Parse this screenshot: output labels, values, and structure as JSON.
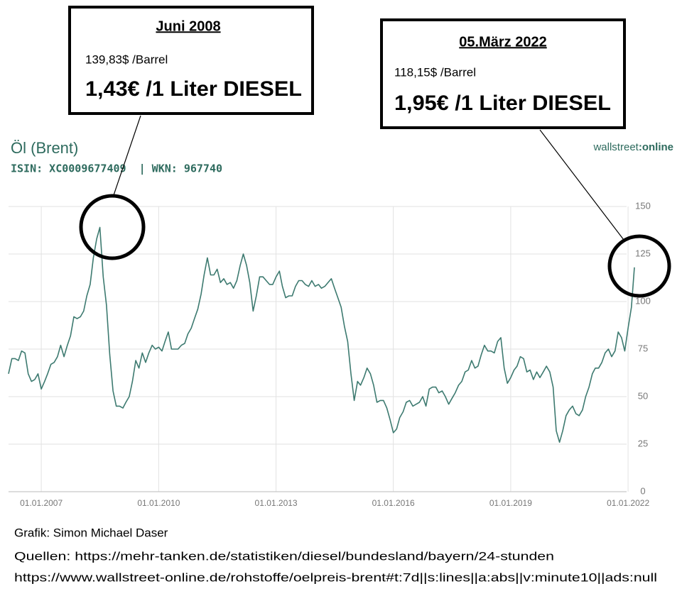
{
  "chart_data": {
    "type": "line",
    "title": "Öl (Brent)",
    "subtitle": "ISIN: XC0009677409  | WKN: 967740",
    "brand": [
      "wallstreet",
      ":online"
    ],
    "annotations": [
      {
        "heading": "Juni 2008",
        "price": "139,83$ /Barrel",
        "diesel": "1,43€ /1 Liter DIESEL"
      },
      {
        "heading": "05.März 2022",
        "price": "118,15$ /Barrel",
        "diesel": "1,95€ /1 Liter DIESEL"
      }
    ],
    "credit": "Grafik: Simon Michael Daser",
    "sources": [
      "Quellen: https://mehr-tanken.de/statistiken/diesel/bundesland/bayern/24-stunden",
      "https://www.wallstreet-online.de/rohstoffe/oelpreis-brent#t:7d||s:lines||a:abs||v:minute10||ads:null"
    ],
    "color": "#3d7a70",
    "grid": true,
    "xlim": [
      "2006-03-01",
      "2022-03-01"
    ],
    "xticks": [
      {
        "value": "2007-01-01",
        "label": "01.01.2007"
      },
      {
        "value": "2010-01-01",
        "label": "01.01.2010"
      },
      {
        "value": "2013-01-01",
        "label": "01.01.2013"
      },
      {
        "value": "2016-01-01",
        "label": "01.01.2016"
      },
      {
        "value": "2019-01-01",
        "label": "01.01.2019"
      },
      {
        "value": "2022-01-01",
        "label": "01.01.2022"
      }
    ],
    "ylim": [
      0,
      150
    ],
    "yticks": [
      0,
      25,
      50,
      75,
      100,
      125,
      150
    ],
    "series": [
      {
        "name": "Öl (Brent)",
        "color": "#3d7a70",
        "x": [
          "2006-03-01",
          "2006-04-01",
          "2006-05-01",
          "2006-06-01",
          "2006-07-01",
          "2006-08-01",
          "2006-09-01",
          "2006-10-01",
          "2006-11-01",
          "2006-12-01",
          "2007-01-01",
          "2007-02-01",
          "2007-03-01",
          "2007-04-01",
          "2007-05-01",
          "2007-06-01",
          "2007-07-01",
          "2007-08-01",
          "2007-09-01",
          "2007-10-01",
          "2007-11-01",
          "2007-12-01",
          "2008-01-01",
          "2008-02-01",
          "2008-03-01",
          "2008-04-01",
          "2008-05-01",
          "2008-06-01",
          "2008-07-01",
          "2008-08-01",
          "2008-09-01",
          "2008-10-01",
          "2008-11-01",
          "2008-12-01",
          "2009-01-01",
          "2009-02-01",
          "2009-03-01",
          "2009-04-01",
          "2009-05-01",
          "2009-06-01",
          "2009-07-01",
          "2009-08-01",
          "2009-09-01",
          "2009-10-01",
          "2009-11-01",
          "2009-12-01",
          "2010-01-01",
          "2010-02-01",
          "2010-03-01",
          "2010-04-01",
          "2010-05-01",
          "2010-06-01",
          "2010-07-01",
          "2010-08-01",
          "2010-09-01",
          "2010-10-01",
          "2010-11-01",
          "2010-12-01",
          "2011-01-01",
          "2011-02-01",
          "2011-03-01",
          "2011-04-01",
          "2011-05-01",
          "2011-06-01",
          "2011-07-01",
          "2011-08-01",
          "2011-09-01",
          "2011-10-01",
          "2011-11-01",
          "2011-12-01",
          "2012-01-01",
          "2012-02-01",
          "2012-03-01",
          "2012-04-01",
          "2012-05-01",
          "2012-06-01",
          "2012-07-01",
          "2012-08-01",
          "2012-09-01",
          "2012-10-01",
          "2012-11-01",
          "2012-12-01",
          "2013-01-01",
          "2013-02-01",
          "2013-03-01",
          "2013-04-01",
          "2013-05-01",
          "2013-06-01",
          "2013-07-01",
          "2013-08-01",
          "2013-09-01",
          "2013-10-01",
          "2013-11-01",
          "2013-12-01",
          "2014-01-01",
          "2014-02-01",
          "2014-03-01",
          "2014-04-01",
          "2014-05-01",
          "2014-06-01",
          "2014-07-01",
          "2014-08-01",
          "2014-09-01",
          "2014-10-01",
          "2014-11-01",
          "2014-12-01",
          "2015-01-01",
          "2015-02-01",
          "2015-03-01",
          "2015-04-01",
          "2015-05-01",
          "2015-06-01",
          "2015-07-01",
          "2015-08-01",
          "2015-09-01",
          "2015-10-01",
          "2015-11-01",
          "2015-12-01",
          "2016-01-01",
          "2016-02-01",
          "2016-03-01",
          "2016-04-01",
          "2016-05-01",
          "2016-06-01",
          "2016-07-01",
          "2016-08-01",
          "2016-09-01",
          "2016-10-01",
          "2016-11-01",
          "2016-12-01",
          "2017-01-01",
          "2017-02-01",
          "2017-03-01",
          "2017-04-01",
          "2017-05-01",
          "2017-06-01",
          "2017-07-01",
          "2017-08-01",
          "2017-09-01",
          "2017-10-01",
          "2017-11-01",
          "2017-12-01",
          "2018-01-01",
          "2018-02-01",
          "2018-03-01",
          "2018-04-01",
          "2018-05-01",
          "2018-06-01",
          "2018-07-01",
          "2018-08-01",
          "2018-09-01",
          "2018-10-01",
          "2018-11-01",
          "2018-12-01",
          "2019-01-01",
          "2019-02-01",
          "2019-03-01",
          "2019-04-01",
          "2019-05-01",
          "2019-06-01",
          "2019-07-01",
          "2019-08-01",
          "2019-09-01",
          "2019-10-01",
          "2019-11-01",
          "2019-12-01",
          "2020-01-01",
          "2020-02-01",
          "2020-03-01",
          "2020-04-01",
          "2020-05-01",
          "2020-06-01",
          "2020-07-01",
          "2020-08-01",
          "2020-09-01",
          "2020-10-01",
          "2020-11-01",
          "2020-12-01",
          "2021-01-01",
          "2021-02-01",
          "2021-03-01",
          "2021-04-01",
          "2021-05-01",
          "2021-06-01",
          "2021-07-01",
          "2021-08-01",
          "2021-09-01",
          "2021-10-01",
          "2021-11-01",
          "2021-12-01",
          "2022-01-01",
          "2022-02-01",
          "2022-03-01"
        ],
        "values": [
          62,
          70,
          70,
          69,
          74,
          73,
          62,
          58,
          59,
          62,
          54,
          58,
          62,
          67,
          68,
          71,
          77,
          71,
          77,
          82,
          92,
          91,
          92,
          95,
          103,
          109,
          123,
          133,
          139,
          113,
          98,
          72,
          53,
          45,
          45,
          44,
          47,
          50,
          58,
          69,
          65,
          73,
          68,
          73,
          77,
          75,
          76,
          74,
          79,
          84,
          75,
          75,
          75,
          77,
          78,
          83,
          86,
          91,
          96,
          104,
          114,
          123,
          114,
          114,
          117,
          110,
          112,
          109,
          110,
          107,
          111,
          119,
          125,
          119,
          110,
          95,
          103,
          113,
          113,
          111,
          109,
          109,
          113,
          116,
          108,
          102,
          103,
          103,
          108,
          111,
          111,
          109,
          108,
          111,
          108,
          109,
          107,
          108,
          110,
          112,
          107,
          102,
          97,
          87,
          79,
          62,
          48,
          58,
          56,
          60,
          65,
          62,
          56,
          47,
          48,
          48,
          44,
          38,
          31,
          33,
          39,
          42,
          47,
          48,
          45,
          46,
          47,
          50,
          45,
          54,
          55,
          55,
          52,
          53,
          50,
          46,
          49,
          52,
          56,
          58,
          63,
          64,
          69,
          65,
          66,
          72,
          77,
          74,
          74,
          73,
          79,
          81,
          65,
          57,
          60,
          64,
          66,
          71,
          70,
          63,
          64,
          59,
          63,
          60,
          63,
          66,
          63,
          55,
          32,
          26,
          32,
          40,
          43,
          45,
          41,
          40,
          43,
          50,
          55,
          62,
          65,
          65,
          68,
          73,
          75,
          71,
          74,
          84,
          81,
          74,
          86,
          97,
          118
        ]
      }
    ]
  }
}
